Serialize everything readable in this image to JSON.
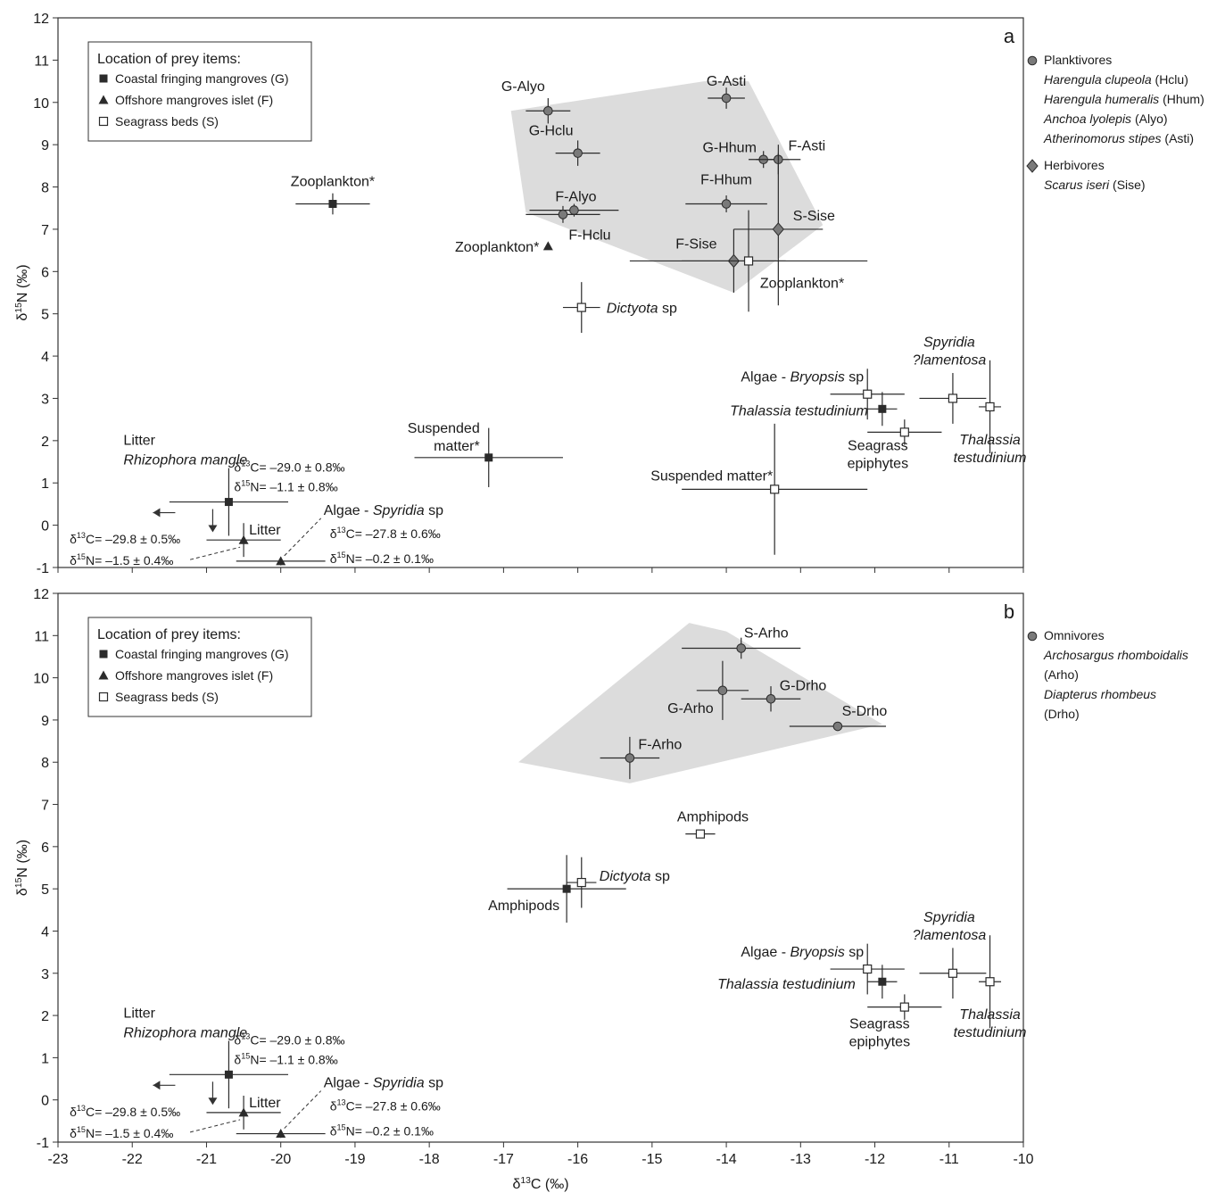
{
  "chart_data": [
    {
      "type": "scatter",
      "panel": "a",
      "xlabel": "",
      "ylabel": "δ15N (‰)",
      "xlim": [
        -23,
        -10
      ],
      "ylim": [
        -1,
        12
      ],
      "legend_box": {
        "title": "Location of prey items:",
        "items": [
          {
            "marker": "filled-square",
            "label": "Coastal fringing mangroves (G)"
          },
          {
            "marker": "triangle",
            "label": "Offshore mangroves islet (F)"
          },
          {
            "marker": "open-square",
            "label": "Seagrass beds (S)"
          }
        ]
      },
      "side_legend": [
        {
          "marker": "circle",
          "group": "Planktivores",
          "species": [
            {
              "name": "Harengula clupeola",
              "code": " (Hclu)"
            },
            {
              "name": "Harengula humeralis",
              "code": " (Hhum)"
            },
            {
              "name": "Anchoa lyolepis",
              "code": " (Alyo)"
            },
            {
              "name": "Atherinomorus stipes",
              "code": " (Asti)"
            }
          ]
        },
        {
          "marker": "diamond",
          "group": "Herbivores",
          "species": [
            {
              "name": "Scarus iseri",
              "code": " (Sise)"
            }
          ]
        }
      ],
      "hull": [
        [
          -16.9,
          9.8
        ],
        [
          -14.3,
          10.5
        ],
        [
          -13.7,
          10.5
        ],
        [
          -12.7,
          7.1
        ],
        [
          -13.9,
          5.5
        ],
        [
          -16.7,
          7.4
        ]
      ],
      "points": [
        {
          "label": "G-Alyo",
          "x": -16.4,
          "y": 9.8,
          "xerr": 0.3,
          "yerr": 0.3,
          "marker": "circle"
        },
        {
          "label": "G-Asti",
          "x": -14.0,
          "y": 10.1,
          "xerr": 0.25,
          "yerr": 0.25,
          "marker": "circle"
        },
        {
          "label": "G-Hclu",
          "x": -16.0,
          "y": 8.8,
          "xerr": 0.3,
          "yerr": 0.3,
          "marker": "circle"
        },
        {
          "label": "G-Hhum",
          "x": -13.5,
          "y": 8.65,
          "xerr": 0.2,
          "yerr": 0.2,
          "marker": "circle"
        },
        {
          "label": "F-Asti",
          "x": -13.3,
          "y": 8.65,
          "xerr": 0.3,
          "yerr": 0.35,
          "marker": "circle"
        },
        {
          "label": "F-Alyo",
          "x": -16.05,
          "y": 7.45,
          "xerr": 0.6,
          "yerr": 0.15,
          "marker": "circle"
        },
        {
          "label": "F-Hclu",
          "x": -16.2,
          "y": 7.35,
          "xerr": 0.5,
          "yerr": 0.2,
          "marker": "circle"
        },
        {
          "label": "F-Hhum",
          "x": -14.0,
          "y": 7.6,
          "xerr": 0.55,
          "yerr": 0.2,
          "marker": "circle"
        },
        {
          "label": "S-Sise",
          "x": -13.3,
          "y": 7.0,
          "xerr": 0.6,
          "yerr": 1.8,
          "marker": "diamond"
        },
        {
          "label": "F-Sise",
          "x": -13.9,
          "y": 6.25,
          "xerr": 0.7,
          "yerr": 0.75,
          "marker": "diamond"
        },
        {
          "label": "Zooplankton*",
          "x": -19.3,
          "y": 7.6,
          "xerr": 0.5,
          "yerr": 0.25,
          "marker": "filled-square"
        },
        {
          "label": "Zooplankton*",
          "x": -16.4,
          "y": 6.6,
          "xerr": 0,
          "yerr": 0,
          "marker": "triangle"
        },
        {
          "label": "Zooplankton*",
          "x": -13.7,
          "y": 6.25,
          "xerr": 1.6,
          "yerr": 1.2,
          "marker": "open-square"
        },
        {
          "label": "Dictyota sp",
          "x": -15.95,
          "y": 5.15,
          "xerr": 0.25,
          "yerr": 0.6,
          "marker": "open-square"
        },
        {
          "label": "Suspended matter*",
          "x": -17.2,
          "y": 1.6,
          "xerr": 1.0,
          "yerr": 0.7,
          "marker": "filled-square"
        },
        {
          "label": "Suspended matter*",
          "x": -13.35,
          "y": 0.85,
          "xerr": 1.25,
          "yerr": 1.55,
          "marker": "open-square"
        },
        {
          "label": "Algae - Bryopsis sp",
          "x": -12.1,
          "y": 3.1,
          "xerr": 0.5,
          "yerr": 0.6,
          "marker": "open-square"
        },
        {
          "label": "Thalassia testudinium",
          "x": -11.9,
          "y": 2.75,
          "xerr": 0.2,
          "yerr": 0.4,
          "marker": "filled-square"
        },
        {
          "label": "Seagrass epiphytes",
          "x": -11.6,
          "y": 2.2,
          "xerr": 0.5,
          "yerr": 0.3,
          "marker": "open-square"
        },
        {
          "label": "Spyridia ?lamentosa",
          "x": -10.95,
          "y": 3.0,
          "xerr": 0.45,
          "yerr": 0.6,
          "marker": "open-square"
        },
        {
          "label": "Thalassia testudinium",
          "x": -10.45,
          "y": 2.8,
          "xerr": 0.15,
          "yerr": 1.1,
          "marker": "open-square"
        },
        {
          "label": "Litter Rhizophora mangle",
          "x": -20.7,
          "y": 0.55,
          "xerr": 0.8,
          "yerr": 0.8,
          "marker": "filled-square"
        },
        {
          "label": "Litter",
          "x": -20.5,
          "y": -0.35,
          "xerr": 0.5,
          "yerr": 0.4,
          "marker": "triangle"
        },
        {
          "label": "Algae - Spyridia sp",
          "x": -20.0,
          "y": -0.85,
          "xerr": 0.6,
          "yerr": 0.1,
          "marker": "triangle"
        }
      ]
    },
    {
      "type": "scatter",
      "panel": "b",
      "xlabel": "δ13C (‰)",
      "ylabel": "δ15N (‰)",
      "xlim": [
        -23,
        -10
      ],
      "ylim": [
        -1,
        12
      ],
      "legend_box": {
        "title": "Location of prey items:",
        "items": [
          {
            "marker": "filled-square",
            "label": "Coastal fringing mangroves (G)"
          },
          {
            "marker": "triangle",
            "label": "Offshore mangroves islet (F)"
          },
          {
            "marker": "open-square",
            "label": "Seagrass beds (S)"
          }
        ]
      },
      "side_legend": [
        {
          "marker": "circle",
          "group": "Omnivores",
          "species": [
            {
              "name": "Archosargus rhomboidalis",
              "code": ""
            },
            {
              "name": "",
              "code": "(Arho)"
            },
            {
              "name": "Diapterus rhombeus",
              "code": ""
            },
            {
              "name": "",
              "code": "(Drho)"
            }
          ]
        }
      ],
      "hull": [
        [
          -16.8,
          8.0
        ],
        [
          -14.5,
          11.3
        ],
        [
          -14.0,
          11.1
        ],
        [
          -11.9,
          8.9
        ],
        [
          -15.3,
          7.5
        ]
      ],
      "points": [
        {
          "label": "S-Arho",
          "x": -13.8,
          "y": 10.7,
          "xerr": 0.8,
          "yerr": 0.25,
          "marker": "circle"
        },
        {
          "label": "G-Arho",
          "x": -14.05,
          "y": 9.7,
          "xerr": 0.35,
          "yerr": 0.7,
          "marker": "circle"
        },
        {
          "label": "G-Drho",
          "x": -13.4,
          "y": 9.5,
          "xerr": 0.4,
          "yerr": 0.3,
          "marker": "circle"
        },
        {
          "label": "S-Drho",
          "x": -12.5,
          "y": 8.85,
          "xerr": 0.65,
          "yerr": 0.1,
          "marker": "circle"
        },
        {
          "label": "F-Arho",
          "x": -15.3,
          "y": 8.1,
          "xerr": 0.4,
          "yerr": 0.5,
          "marker": "circle"
        },
        {
          "label": "Amphipods",
          "x": -14.35,
          "y": 6.3,
          "xerr": 0.2,
          "yerr": 0,
          "marker": "open-square"
        },
        {
          "label": "Dictyota sp",
          "x": -15.95,
          "y": 5.15,
          "xerr": 0.2,
          "yerr": 0.6,
          "marker": "open-square"
        },
        {
          "label": "Amphipods",
          "x": -16.15,
          "y": 5.0,
          "xerr": 0.8,
          "yerr": 0.8,
          "marker": "filled-square"
        },
        {
          "label": "Algae - Bryopsis sp",
          "x": -12.1,
          "y": 3.1,
          "xerr": 0.5,
          "yerr": 0.6,
          "marker": "open-square"
        },
        {
          "label": "Thalassia testudinium",
          "x": -11.9,
          "y": 2.8,
          "xerr": 0.2,
          "yerr": 0.4,
          "marker": "filled-square"
        },
        {
          "label": "Seagrass epiphytes",
          "x": -11.6,
          "y": 2.2,
          "xerr": 0.5,
          "yerr": 0.3,
          "marker": "open-square"
        },
        {
          "label": "Spyridia ?lamentosa",
          "x": -10.95,
          "y": 3.0,
          "xerr": 0.45,
          "yerr": 0.6,
          "marker": "open-square"
        },
        {
          "label": "Thalassia testudinium",
          "x": -10.45,
          "y": 2.8,
          "xerr": 0.15,
          "yerr": 1.1,
          "marker": "open-square"
        },
        {
          "label": "Litter Rhizophora mangle",
          "x": -20.7,
          "y": 0.6,
          "xerr": 0.8,
          "yerr": 0.8,
          "marker": "filled-square"
        },
        {
          "label": "Litter",
          "x": -20.5,
          "y": -0.3,
          "xerr": 0.5,
          "yerr": 0.4,
          "marker": "triangle"
        },
        {
          "label": "Algae - Spyridia sp",
          "x": -20.0,
          "y": -0.8,
          "xerr": 0.6,
          "yerr": 0.1,
          "marker": "triangle"
        }
      ]
    }
  ],
  "annotations": {
    "litter_red_c": "δ13C= –29.0 ± 0.8‰",
    "litter_red_n": "δ15N= –1.1 ± 0.8‰",
    "litter_tri_c": "δ13C= –29.8 ± 0.5‰",
    "litter_tri_n": "δ15N= –1.5 ± 0.4‰",
    "spyridia_c": "δ13C= –27.8 ± 0.6‰",
    "spyridia_n": "δ15N= –0.2 ± 0.1‰"
  },
  "colors": {
    "hull": "#dcdcdc",
    "marker_grey": "#7a7a7a",
    "marker_dark": "#2b2b2b",
    "line": "#2b2b2b"
  }
}
